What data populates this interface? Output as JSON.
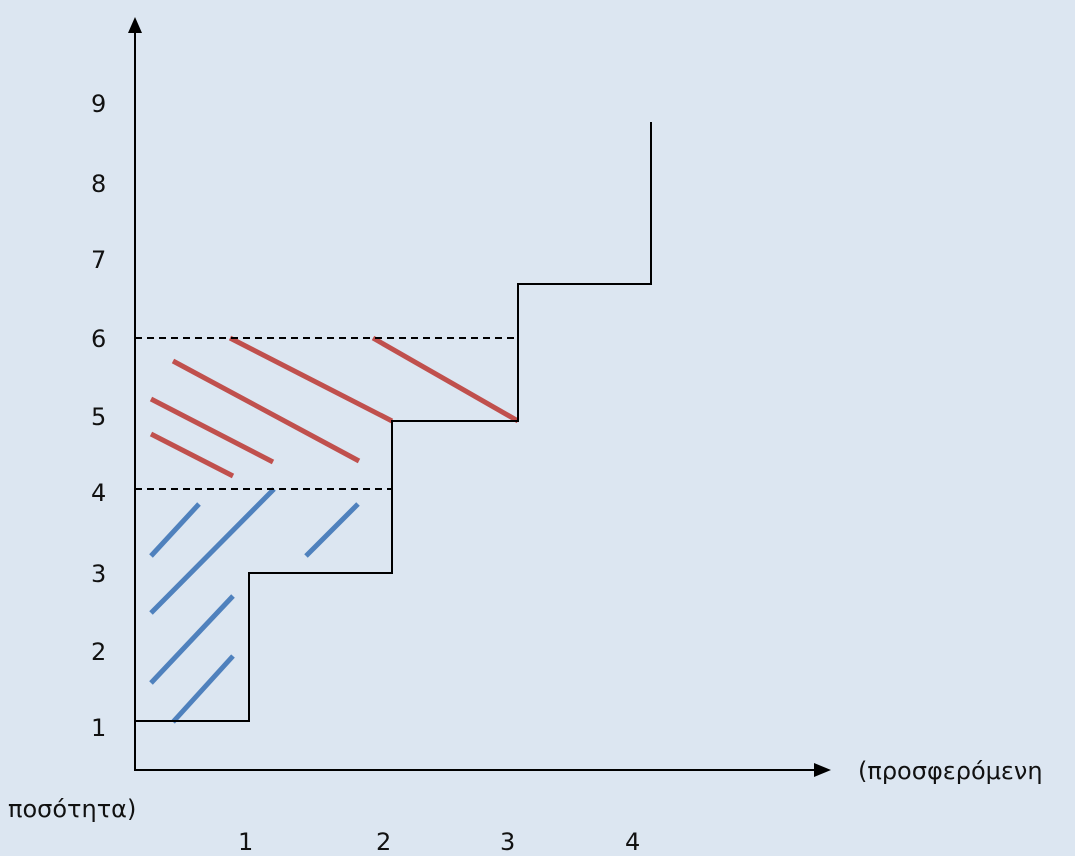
{
  "chart_data": {
    "type": "line",
    "y_ticks": [
      "9",
      "8",
      "7",
      "6",
      "5",
      "4",
      "3",
      "2",
      "1"
    ],
    "x_ticks": [
      "1",
      "2",
      "3",
      "4"
    ],
    "xlabel_part1": "(προσφερόμενη",
    "xlabel_part2": "ποσότητα)",
    "supply_steps": [
      {
        "x": [
          0,
          1
        ],
        "y": 1
      },
      {
        "x": [
          1,
          2
        ],
        "y": 3
      },
      {
        "x": [
          2,
          3
        ],
        "y": 5
      },
      {
        "x": [
          3,
          4
        ],
        "y": 7
      }
    ],
    "price_levels_dashed": [
      4,
      6
    ],
    "surplus_blue_between": [
      1,
      4
    ],
    "surplus_red_between": [
      4,
      6
    ],
    "colors": {
      "background": "#dce6f1",
      "axis": "#000000",
      "curve": "#000000",
      "blue_hatch": "#4f81bd",
      "red_hatch": "#c0504d"
    }
  }
}
